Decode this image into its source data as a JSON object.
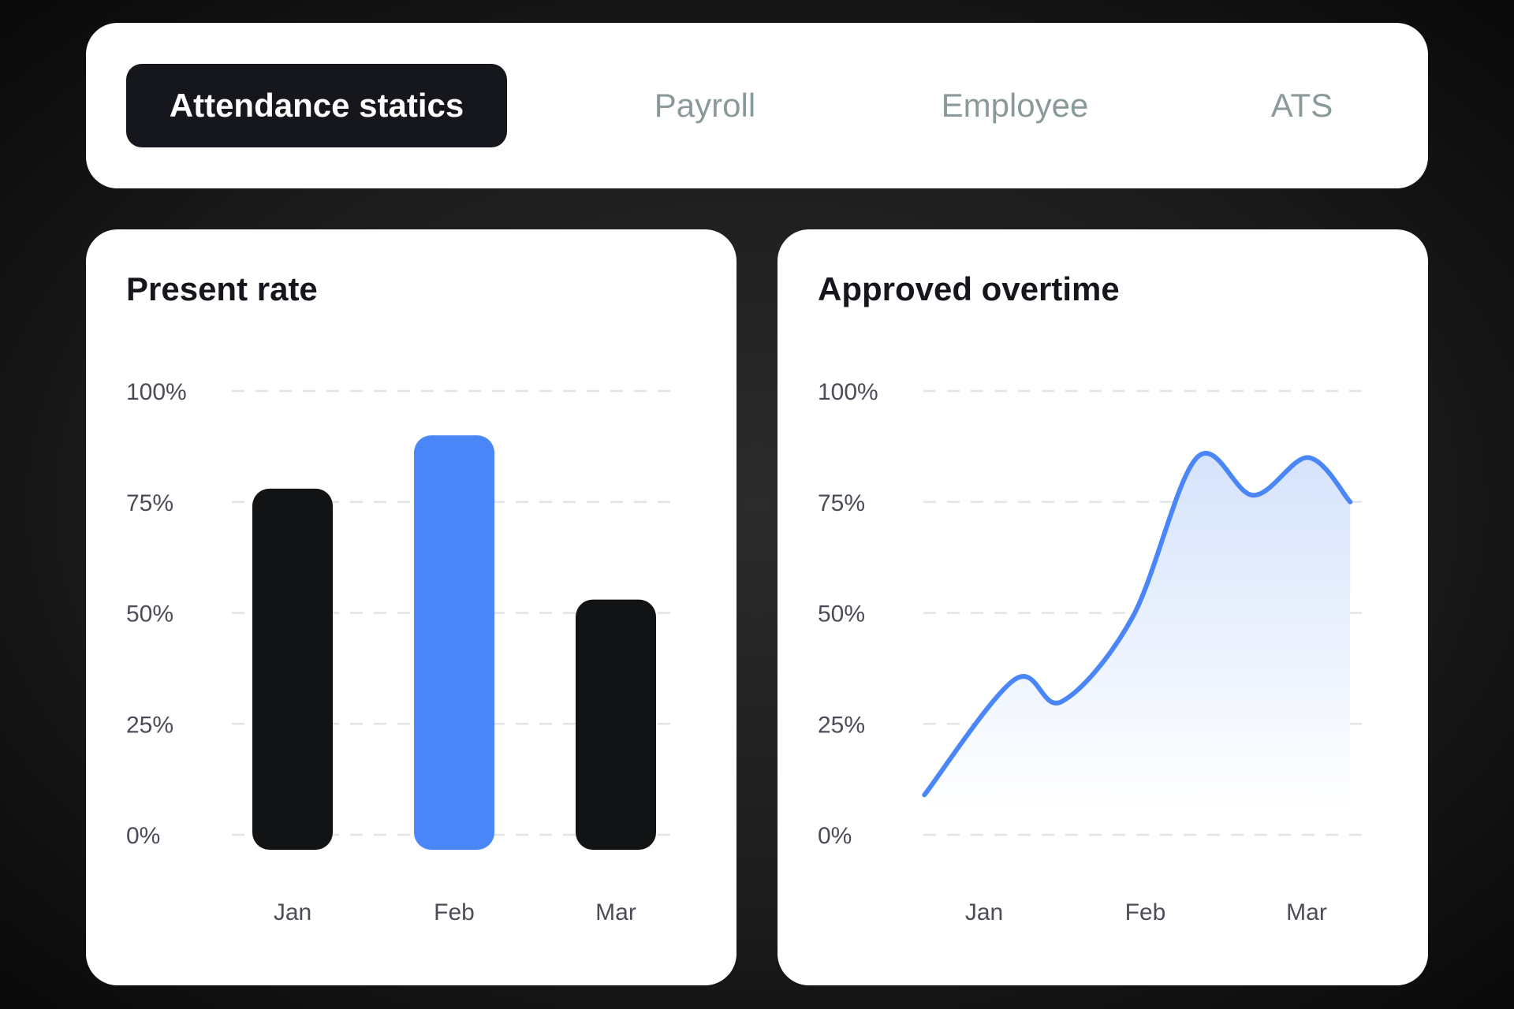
{
  "tabs": [
    {
      "label": "Attendance statics",
      "active": true
    },
    {
      "label": "Payroll",
      "active": false
    },
    {
      "label": "Employee",
      "active": false
    },
    {
      "label": "ATS",
      "active": false
    }
  ],
  "chart_data": [
    {
      "type": "bar",
      "title": "Present rate",
      "categories": [
        "Jan",
        "Feb",
        "Mar"
      ],
      "values": [
        78,
        90,
        53
      ],
      "colors": [
        "#121314",
        "#4a86f7",
        "#121314"
      ],
      "yticks": [
        "0%",
        "25%",
        "50%",
        "75%",
        "100%"
      ],
      "ylim": [
        0,
        100
      ],
      "grid": true
    },
    {
      "type": "area",
      "title": "Approved overtime",
      "categories": [
        "Jan",
        "Feb",
        "Mar"
      ],
      "points": [
        [
          -0.37,
          9
        ],
        [
          0.19,
          35
        ],
        [
          0.48,
          30
        ],
        [
          0.92,
          49
        ],
        [
          1.32,
          85
        ],
        [
          1.67,
          76.5
        ],
        [
          2.01,
          85
        ],
        [
          2.27,
          75
        ]
      ],
      "color": "#4a86f7",
      "yticks": [
        "0%",
        "25%",
        "50%",
        "75%",
        "100%"
      ],
      "ylim": [
        0,
        100
      ],
      "grid": true
    }
  ]
}
